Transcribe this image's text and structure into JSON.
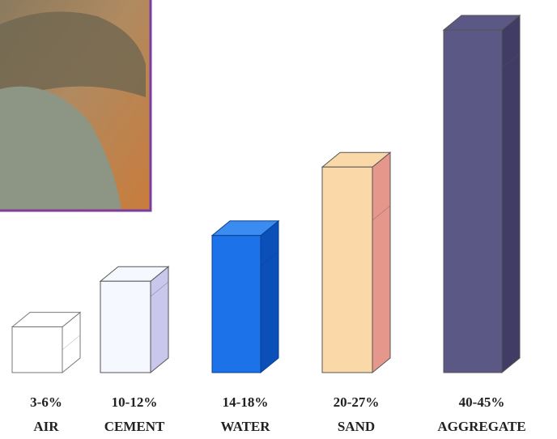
{
  "chart_data": {
    "type": "bar3d",
    "categories": [
      "AIR",
      "CEMENT",
      "WATER",
      "SAND",
      "AGGREGATE"
    ],
    "low": [
      3,
      10,
      14,
      20,
      40
    ],
    "high": [
      6,
      12,
      18,
      27,
      45
    ],
    "value_labels": [
      "3-6%",
      "10-12%",
      "14-18%",
      "20-27%",
      "40-45%"
    ],
    "colors": [
      [
        "#ffffff",
        "#ffffff"
      ],
      [
        "#f6f8ff",
        "#c9c8ec"
      ],
      [
        "#1c72e8",
        "#0b4fb8"
      ],
      [
        "#fbd8a8",
        "#e6978c"
      ],
      [
        "#5c5886",
        "#403c66"
      ]
    ]
  }
}
